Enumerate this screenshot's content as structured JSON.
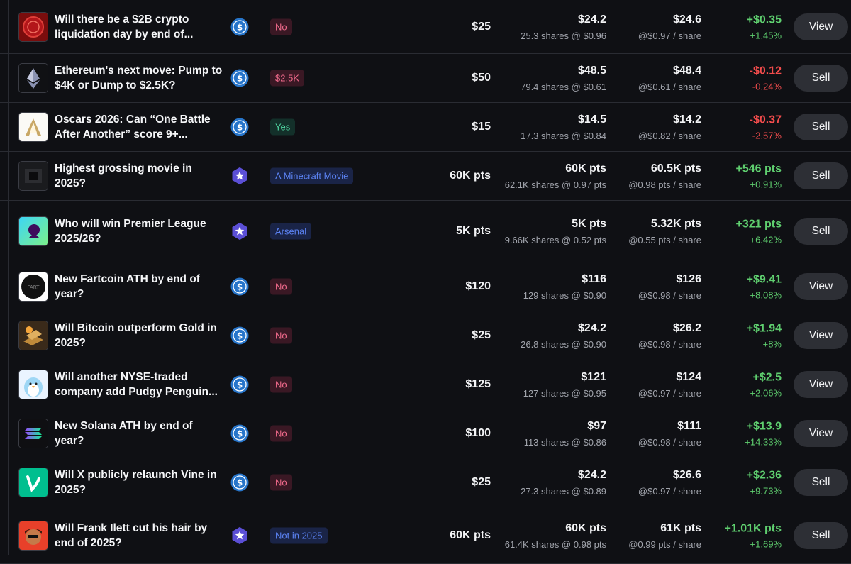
{
  "colors": {
    "background": "#0f1014",
    "positive": "#5fcf6f",
    "negative": "#f24c4c",
    "no_badge": "#f06a8c",
    "yes_badge": "#4fd3a0",
    "option_badge": "#5b82f2",
    "usdc": "#2775ca",
    "points": "#5b4fd6",
    "button": "#2d2f35"
  },
  "rows": [
    {
      "title": "Will there be a $2B crypto liquidation day by end of...",
      "thumb_icon": "red-coin-icon",
      "currency_icon": "usdc-icon",
      "outcome": "No",
      "outcome_type": "no",
      "invested": "$25",
      "current_value": "$24.2",
      "shares": "25.3 shares @ $0.96",
      "price": "$24.6",
      "price_sub": "@$0.97 / share",
      "pnl": "+$0.35",
      "pnl_pct": "+1.45%",
      "pnl_sign": "pos",
      "action": "View"
    },
    {
      "title": "Ethereum's next move: Pump to $4K or Dump to $2.5K?",
      "thumb_icon": "ethereum-icon",
      "currency_icon": "usdc-icon",
      "outcome": "$2.5K",
      "outcome_type": "no",
      "invested": "$50",
      "current_value": "$48.5",
      "shares": "79.4 shares @ $0.61",
      "price": "$48.4",
      "price_sub": "@$0.61 / share",
      "pnl": "-$0.12",
      "pnl_pct": "-0.24%",
      "pnl_sign": "neg",
      "action": "Sell"
    },
    {
      "title": "Oscars 2026: Can “One Battle After Another” score 9+...",
      "thumb_icon": "oscars-icon",
      "currency_icon": "usdc-icon",
      "outcome": "Yes",
      "outcome_type": "yes",
      "invested": "$15",
      "current_value": "$14.5",
      "shares": "17.3 shares @ $0.84",
      "price": "$14.2",
      "price_sub": "@$0.82 / share",
      "pnl": "-$0.37",
      "pnl_pct": "-2.57%",
      "pnl_sign": "neg",
      "action": "Sell"
    },
    {
      "title": "Highest grossing movie in 2025?",
      "thumb_icon": "movie-icon",
      "currency_icon": "points-icon",
      "outcome": "A Minecraft Movie",
      "outcome_type": "opt",
      "invested": "60K pts",
      "current_value": "60K pts",
      "shares": "62.1K shares @ 0.97 pts",
      "price": "60.5K pts",
      "price_sub": "@0.98 pts / share",
      "pnl": "+546 pts",
      "pnl_pct": "+0.91%",
      "pnl_sign": "pos",
      "action": "Sell"
    },
    {
      "title": "Who will win Premier League 2025/26?",
      "thumb_icon": "premier-league-icon",
      "currency_icon": "points-icon",
      "outcome": "Arsenal",
      "outcome_type": "opt",
      "invested": "5K pts",
      "current_value": "5K pts",
      "shares": "9.66K shares @ 0.52 pts",
      "price": "5.32K pts",
      "price_sub": "@0.55 pts / share",
      "pnl": "+321 pts",
      "pnl_pct": "+6.42%",
      "pnl_sign": "pos",
      "action": "Sell"
    },
    {
      "title": "New Fartcoin ATH by end of year?",
      "thumb_icon": "fartcoin-icon",
      "currency_icon": "usdc-icon",
      "outcome": "No",
      "outcome_type": "no",
      "invested": "$120",
      "current_value": "$116",
      "shares": "129 shares @ $0.90",
      "price": "$126",
      "price_sub": "@$0.98 / share",
      "pnl": "+$9.41",
      "pnl_pct": "+8.08%",
      "pnl_sign": "pos",
      "action": "View"
    },
    {
      "title": "Will Bitcoin outperform Gold in 2025?",
      "thumb_icon": "gold-bitcoin-icon",
      "currency_icon": "usdc-icon",
      "outcome": "No",
      "outcome_type": "no",
      "invested": "$25",
      "current_value": "$24.2",
      "shares": "26.8 shares @ $0.90",
      "price": "$26.2",
      "price_sub": "@$0.98 / share",
      "pnl": "+$1.94",
      "pnl_pct": "+8%",
      "pnl_sign": "pos",
      "action": "View"
    },
    {
      "title": "Will another NYSE-traded company add Pudgy Penguin...",
      "thumb_icon": "pudgy-penguin-icon",
      "currency_icon": "usdc-icon",
      "outcome": "No",
      "outcome_type": "no",
      "invested": "$125",
      "current_value": "$121",
      "shares": "127 shares @ $0.95",
      "price": "$124",
      "price_sub": "@$0.97 / share",
      "pnl": "+$2.5",
      "pnl_pct": "+2.06%",
      "pnl_sign": "pos",
      "action": "View"
    },
    {
      "title": "New Solana ATH by end of year?",
      "thumb_icon": "solana-icon",
      "currency_icon": "usdc-icon",
      "outcome": "No",
      "outcome_type": "no",
      "invested": "$100",
      "current_value": "$97",
      "shares": "113 shares @ $0.86",
      "price": "$111",
      "price_sub": "@$0.98 / share",
      "pnl": "+$13.9",
      "pnl_pct": "+14.33%",
      "pnl_sign": "pos",
      "action": "View"
    },
    {
      "title": "Will X publicly relaunch Vine in 2025?",
      "thumb_icon": "vine-icon",
      "currency_icon": "usdc-icon",
      "outcome": "No",
      "outcome_type": "no",
      "invested": "$25",
      "current_value": "$24.2",
      "shares": "27.3 shares @ $0.89",
      "price": "$26.6",
      "price_sub": "@$0.97 / share",
      "pnl": "+$2.36",
      "pnl_pct": "+9.73%",
      "pnl_sign": "pos",
      "action": "Sell"
    },
    {
      "title": "Will Frank Ilett cut his hair by end of 2025?",
      "thumb_icon": "frank-ilett-icon",
      "currency_icon": "points-icon",
      "outcome": "Not in 2025",
      "outcome_type": "opt",
      "invested": "60K pts",
      "current_value": "60K pts",
      "shares": "61.4K shares @ 0.98 pts",
      "price": "61K pts",
      "price_sub": "@0.99 pts / share",
      "pnl": "+1.01K pts",
      "pnl_pct": "+1.69%",
      "pnl_sign": "pos",
      "action": "Sell"
    }
  ]
}
